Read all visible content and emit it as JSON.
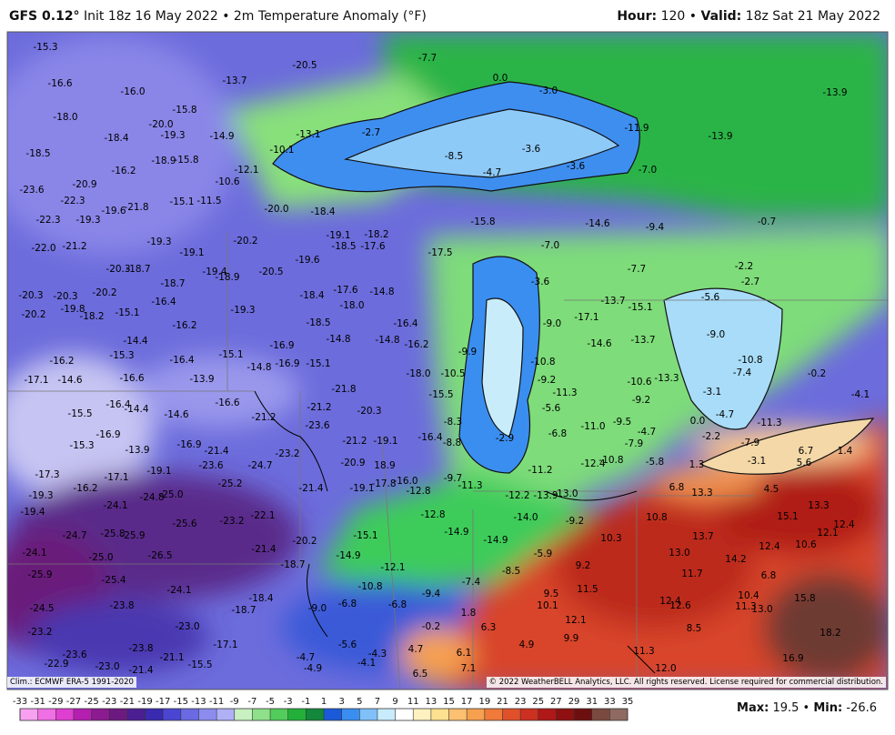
{
  "header": {
    "title": [
      {
        "text": "GFS 0.12°",
        "bold": true
      },
      {
        "text": " Init 18z 16 May 2022 • 2m Temperature Anomaly (°F)",
        "bold": false
      }
    ],
    "valid": [
      {
        "text": "Hour:",
        "bold": true
      },
      {
        "text": " 120 • ",
        "bold": false
      },
      {
        "text": "Valid:",
        "bold": true
      },
      {
        "text": " 18z Sat 21 May 2022",
        "bold": false
      }
    ]
  },
  "map": {
    "labels": [
      "-15.3",
      "-20.5",
      "-7.7",
      "0.0",
      "-3.0",
      "-13.9",
      "-16.6",
      "-16.0",
      "-13.7",
      "-15.8",
      "-18.0",
      "-20.0",
      "-18.4",
      "-19.3",
      "-14.9",
      "-13.1",
      "-2.7",
      "-11.9",
      "-13.9",
      "-18.5",
      "-3.6",
      "-3.6",
      "-4.7",
      "-8.5",
      "-10.1",
      "-18.9",
      "-15.8",
      "-16.2",
      "-12.1",
      "-10.6",
      "-20.9",
      "-23.6",
      "-7.0",
      "-22.3",
      "-21.8",
      "-19.6",
      "-15.1",
      "-11.5",
      "-20.0",
      "-18.4",
      "-15.8",
      "-14.6",
      "-9.4",
      "-0.7",
      "-22.3",
      "-19.3",
      "-19.1",
      "-18.2",
      "-18.5",
      "-17.6",
      "-20.2",
      "-19.3",
      "-7.0",
      "-17.5",
      "-22.0",
      "-21.2",
      "-19.1",
      "-19.6",
      "-20.3",
      "-18.7",
      "-19.4",
      "-18.9",
      "-20.5",
      "-7.7",
      "-2.2",
      "-2.7",
      "-18.7",
      "-20.3",
      "-20.3",
      "-20.2",
      "-3.6",
      "-18.4",
      "-17.6",
      "-14.8",
      "-18.0",
      "-13.7",
      "-15.1",
      "-5.6",
      "-16.4",
      "-20.2",
      "-19.8",
      "-18.2",
      "-15.1",
      "-19.3",
      "-17.1",
      "-9.0",
      "-16.4",
      "-18.5",
      "-16.2",
      "-9.0",
      "-14.4",
      "-14.8",
      "-14.8",
      "-16.2",
      "-16.9",
      "-14.6",
      "-13.7",
      "-15.3",
      "-15.1",
      "-16.4",
      "-9.9",
      "-16.2",
      "-16.9",
      "-15.1",
      "-14.8",
      "-10.8",
      "-10.8",
      "-18.0",
      "-10.5",
      "-7.4",
      "-0.2",
      "-17.1",
      "-14.6",
      "-16.6",
      "-13.9",
      "-9.2",
      "-10.6",
      "-13.3",
      "-21.8",
      "-11.3",
      "-3.1",
      "-4.1",
      "-16.6",
      "-15.5",
      "-9.2",
      "-5.6",
      "-16.4",
      "-14.4",
      "-21.2",
      "-20.3",
      "-15.5",
      "-14.6",
      "-21.2",
      "-8.3",
      "-9.5",
      "0.0",
      "-4.7",
      "-23.6",
      "-11.0",
      "-11.3",
      "-6.8",
      "-4.7",
      "-2.9",
      "-16.9",
      "-15.3",
      "-16.4",
      "-21.2",
      "-19.1",
      "-8.8",
      "-2.2",
      "-7.9",
      "-7.9",
      "6.7",
      "1.4",
      "-13.9",
      "-16.9",
      "-21.4",
      "-23.2",
      "-10.8",
      "-12.4",
      "-5.8",
      "1.3",
      "-3.1",
      "5.6",
      "-20.9",
      "18.9",
      "-17.3",
      "-17.1",
      "-19.1",
      "-23.6",
      "-24.7",
      "-11.2",
      "-9.7",
      "-25.2",
      "-17.8",
      "-16.0",
      "-11.3",
      "6.8",
      "-21.4",
      "-19.1",
      "-12.8",
      "-16.2",
      "13.3",
      "4.5",
      "-12.2",
      "-13.9",
      "-13.0",
      "-19.3",
      "-24.8",
      "-25.0",
      "-24.1",
      "13.3",
      "-19.4",
      "-22.1",
      "-23.2",
      "-25.6",
      "-12.8",
      "-14.0",
      "-9.2",
      "10.8",
      "15.1",
      "12.4",
      "-24.7",
      "-25.8",
      "-25.9",
      "-14.9",
      "-15.1",
      "12.1",
      "-14.9",
      "13.7",
      "10.3",
      "-20.2",
      "-21.4",
      "-24.1",
      "-25.0",
      "-26.5",
      "-14.9",
      "-5.9",
      "13.0",
      "12.4",
      "10.6",
      "14.2",
      "-18.7",
      "-12.1",
      "-8.5",
      "9.2",
      "-25.9",
      "-25.4",
      "-7.4",
      "11.7",
      "6.8",
      "-24.1",
      "-10.8",
      "-18.4",
      "-9.4",
      "11.5",
      "-6.8",
      "-6.8",
      "-9.0",
      "9.5",
      "10.1",
      "12.4",
      "12.6",
      "10.4",
      "11.3",
      "13.0",
      "15.8",
      "-24.5",
      "-23.8",
      "-18.7",
      "1.8",
      "-0.2",
      "6.3",
      "12.1",
      "8.5",
      "-23.2",
      "-23.0",
      "18.2",
      "9.9",
      "-17.1",
      "-5.6",
      "4.7",
      "4.9",
      "6.1",
      "-23.8",
      "-23.6",
      "-4.3",
      "-21.1",
      "11.3",
      "16.9",
      "-4.7",
      "-4.1",
      "-15.5",
      "-23.0",
      "-22.9",
      "-4.9",
      "7.1",
      "-21.4",
      "6.5",
      "12.0"
    ],
    "climo": "Clim.: ECMWF ERA-5 1991-2020",
    "copyright": "© 2022 WeatherBELL Analytics, LLC. All rights reserved. License required for commercial distribution."
  },
  "colorbar": {
    "ticks": [
      -33,
      -31,
      -29,
      -27,
      -25,
      -23,
      -21,
      -19,
      -17,
      -15,
      -13,
      -11,
      -9,
      -7,
      -5,
      -3,
      -1,
      1,
      3,
      5,
      7,
      9,
      11,
      13,
      15,
      17,
      19,
      21,
      23,
      25,
      27,
      29,
      31,
      33,
      35
    ],
    "colors": [
      "#f7a1f0",
      "#ef6fe4",
      "#de3fd0",
      "#b41fb0",
      "#8c1a90",
      "#6d1a80",
      "#4b1f92",
      "#3a2ab0",
      "#4b46d2",
      "#6b6ae2",
      "#8c8cee",
      "#b0b0f6",
      "#c8f0c0",
      "#8ee08a",
      "#52cc5a",
      "#22b03a",
      "#14883a",
      "#1a5ad8",
      "#3a8ef0",
      "#80c0f8",
      "#c8ecfc",
      "#ffffff",
      "#fff2c0",
      "#fde090",
      "#fbc070",
      "#f6a050",
      "#ef7a3a",
      "#e0502a",
      "#cc3020",
      "#b01818",
      "#8e1010",
      "#6e0f0f",
      "#7a4a40",
      "#8e6a60"
    ]
  },
  "stats": [
    {
      "text": "Max:",
      "bold": true
    },
    {
      "text": " 19.5 • ",
      "bold": false
    },
    {
      "text": "Min:",
      "bold": true
    },
    {
      "text": " -26.6",
      "bold": false
    }
  ]
}
